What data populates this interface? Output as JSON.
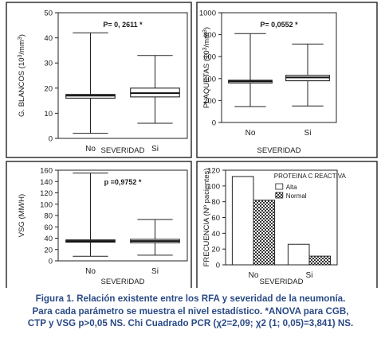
{
  "chart_data": [
    {
      "type": "boxplot",
      "ylabel_main": "G. BLANCOS (10",
      "ylabel_sup": "3",
      "ylabel_tail": "/mm",
      "ylabel_sup2": "3",
      "ylabel_end": ")",
      "xlabel": "SEVERIDAD",
      "annotation": "P= 0, 2611 *",
      "categories": [
        "No",
        "Si"
      ],
      "ylim": [
        0,
        50
      ],
      "yticks": [
        0,
        10,
        20,
        30,
        40,
        50
      ],
      "boxes": [
        {
          "category": "No",
          "min": 2,
          "q1": 16,
          "median": 17,
          "q3": 17.5,
          "max": 42
        },
        {
          "category": "Si",
          "min": 6,
          "q1": 16.5,
          "median": 18,
          "q3": 20,
          "max": 33
        }
      ]
    },
    {
      "type": "boxplot",
      "ylabel_main": "PLAQUETAS (10",
      "ylabel_sup": "3",
      "ylabel_tail": "/mm",
      "ylabel_sup2": "3",
      "ylabel_end": ")",
      "xlabel": "SEVERIDAD",
      "annotation": "P= 0,0552 *",
      "categories": [
        "No",
        "Si"
      ],
      "ylim": [
        0,
        1000
      ],
      "yticks": [
        0,
        200,
        400,
        600,
        800,
        1000
      ],
      "boxes": [
        {
          "category": "No",
          "min": 145,
          "q1": 360,
          "median": 375,
          "q3": 385,
          "max": 810
        },
        {
          "category": "Si",
          "min": 150,
          "q1": 380,
          "median": 410,
          "q3": 430,
          "max": 715
        }
      ]
    },
    {
      "type": "boxplot",
      "ylabel_main": "VSG (MM/H)",
      "xlabel": "SEVERIDAD",
      "annotation": "p =0,9752 *",
      "categories": [
        "No",
        "Si"
      ],
      "ylim": [
        0,
        160
      ],
      "yticks": [
        0,
        20,
        40,
        60,
        80,
        100,
        120,
        140,
        160
      ],
      "boxes": [
        {
          "category": "No",
          "min": 8,
          "q1": 33,
          "median": 35,
          "q3": 37,
          "max": 155
        },
        {
          "category": "Si",
          "min": 10,
          "q1": 32,
          "median": 35,
          "q3": 38,
          "max": 73
        }
      ]
    },
    {
      "type": "bar",
      "ylabel_main": "FRECUENCIA (Nº pacientes)",
      "xlabel": "SEVERIDAD",
      "legend_title": "PROTEINA C REACTIVA",
      "categories": [
        "No",
        "Si"
      ],
      "ylim": [
        0,
        120
      ],
      "yticks": [
        0,
        20,
        40,
        60,
        80,
        100,
        120
      ],
      "series": [
        {
          "name": "Alta",
          "values": [
            112,
            26
          ]
        },
        {
          "name": "Normal",
          "values": [
            82,
            11
          ]
        }
      ]
    }
  ],
  "caption": {
    "line1": "Figura 1. Relación existente entre los RFA y severidad de la neumonía.",
    "line2": "Para cada parámetro  se muestra el nivel estadístico. *ANOVA para CGB,",
    "line3": "CTP y VSG p>0,05 NS. Chi Cuadrado PCR (χ2=2,09; χ2 (1; 0,05)=3,841) NS."
  }
}
